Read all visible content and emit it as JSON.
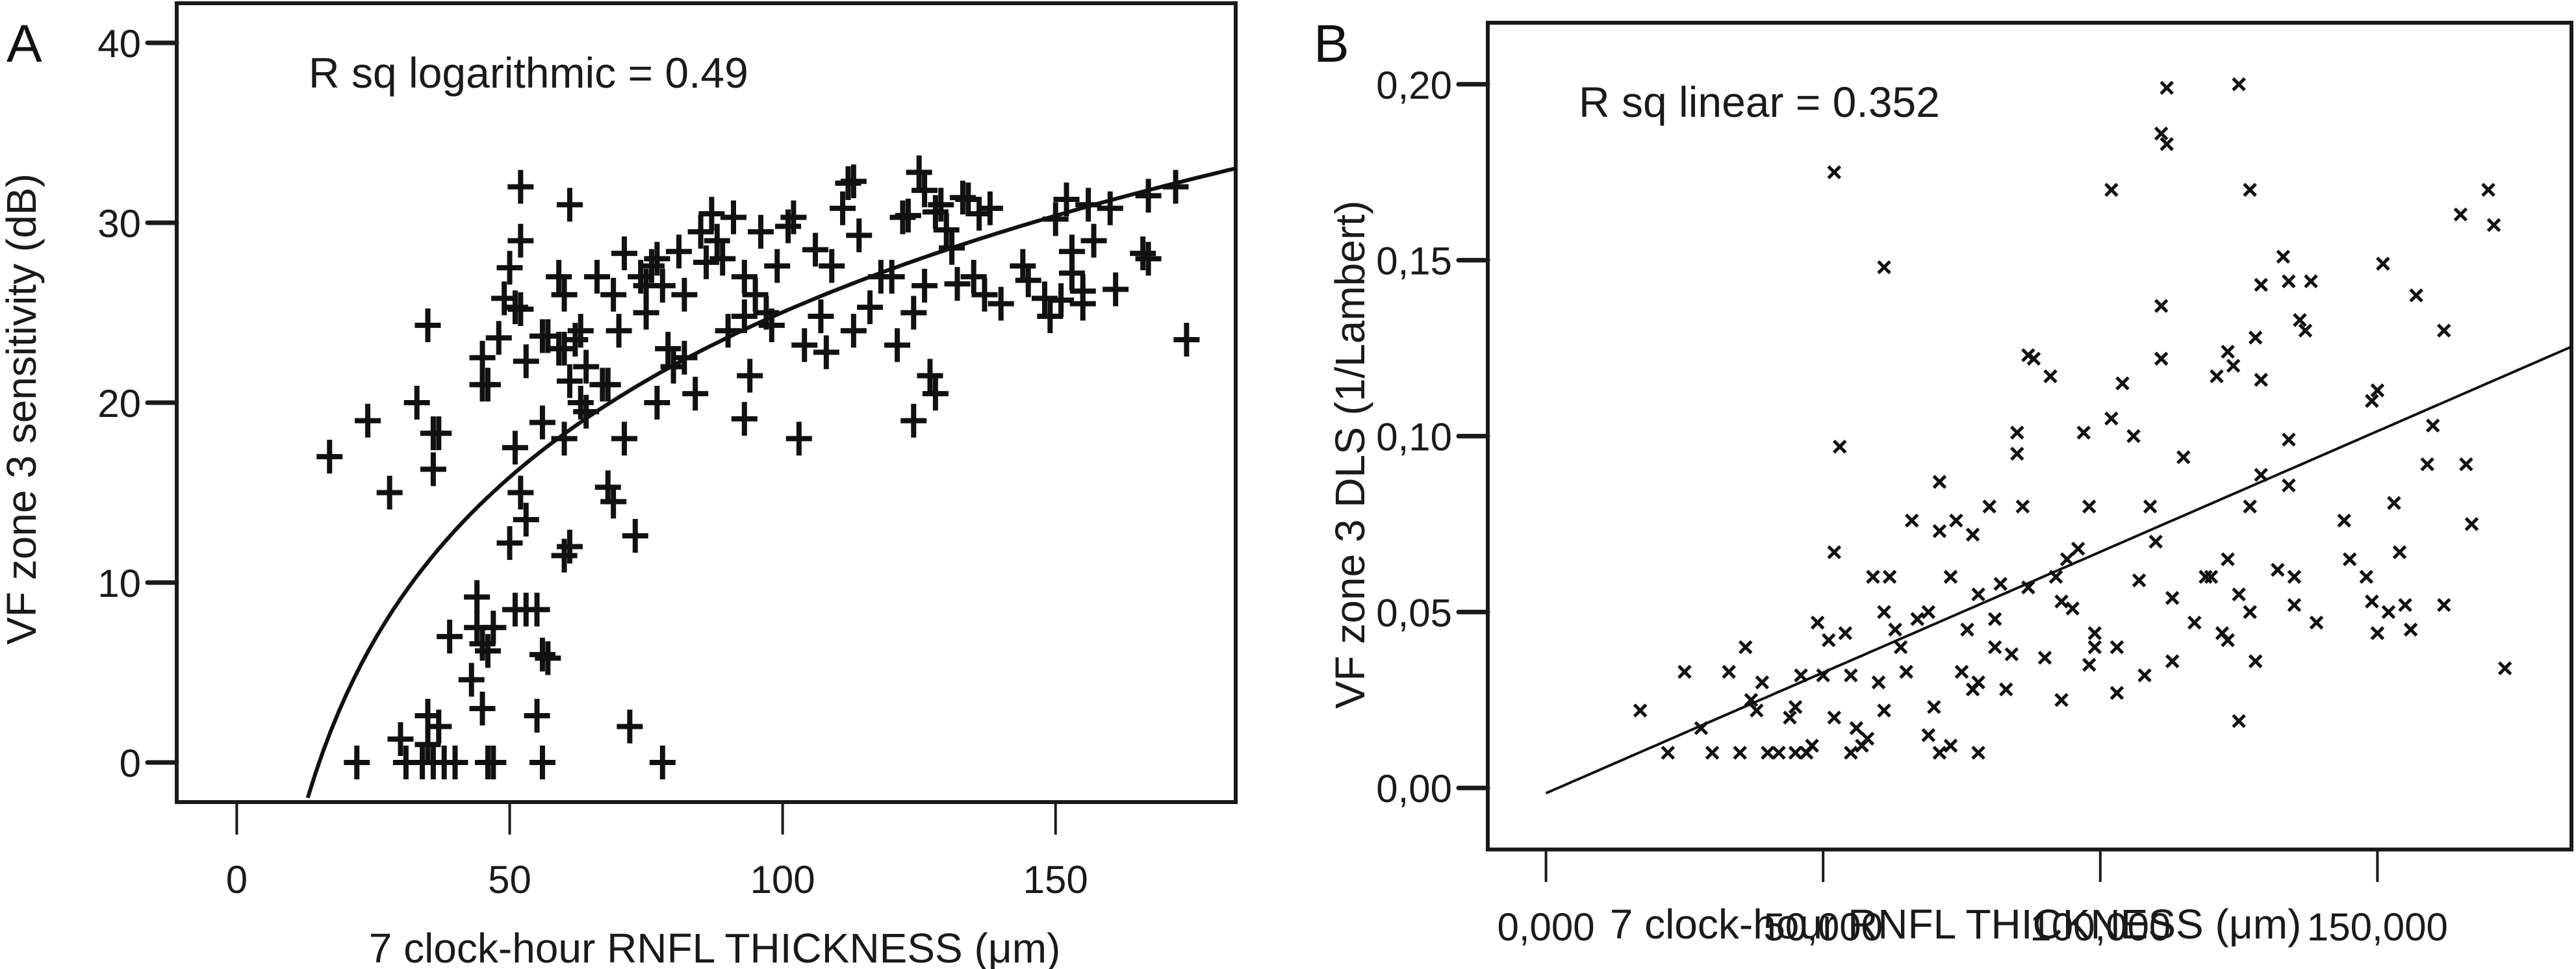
{
  "chart_data": [
    {
      "panel": "A",
      "type": "scatter",
      "title": "",
      "annotation": "R sq logarithmic = 0.49",
      "xlabel": "7 clock-hour RNFL THICKNESS (μm)",
      "ylabel": "VF zone 3 sensitivity (dB)",
      "xlim": [
        -11,
        183
      ],
      "ylim": [
        -2.2,
        42.2
      ],
      "xticks": [
        0,
        50,
        100,
        150
      ],
      "xtick_labels": [
        "0",
        "50",
        "100",
        "150"
      ],
      "yticks": [
        0,
        10,
        20,
        30,
        40
      ],
      "ytick_labels": [
        "0",
        "10",
        "20",
        "30",
        "40"
      ],
      "marker": "plus",
      "grid": false,
      "fit": {
        "type": "logarithmic",
        "a": -35.9,
        "b": 13.23,
        "x_range": [
          13,
          183
        ]
      },
      "points": [
        [
          17,
          17
        ],
        [
          24,
          19
        ],
        [
          28,
          15
        ],
        [
          33,
          20
        ],
        [
          35,
          24.3
        ],
        [
          36,
          18.3
        ],
        [
          37,
          18.3
        ],
        [
          36,
          16.3
        ],
        [
          35,
          2.6
        ],
        [
          30,
          1.3
        ],
        [
          35,
          1
        ],
        [
          37,
          2
        ],
        [
          22,
          0
        ],
        [
          31,
          0
        ],
        [
          34,
          0
        ],
        [
          36,
          0
        ],
        [
          38,
          0
        ],
        [
          40,
          0
        ],
        [
          39,
          7
        ],
        [
          43,
          4.6
        ],
        [
          44,
          9.2
        ],
        [
          44,
          7.5
        ],
        [
          45,
          6.6
        ],
        [
          46,
          6.2
        ],
        [
          47,
          7.5
        ],
        [
          45,
          3
        ],
        [
          46,
          0
        ],
        [
          47,
          0
        ],
        [
          45,
          21
        ],
        [
          46,
          21
        ],
        [
          45,
          22.5
        ],
        [
          48,
          23.6
        ],
        [
          49,
          25.8
        ],
        [
          50,
          27.5
        ],
        [
          51,
          25.3
        ],
        [
          52,
          32
        ],
        [
          52,
          29
        ],
        [
          52,
          25.2
        ],
        [
          53,
          22.3
        ],
        [
          51,
          17.5
        ],
        [
          50,
          12.2
        ],
        [
          52,
          15
        ],
        [
          53,
          13.5
        ],
        [
          51,
          8.5
        ],
        [
          53,
          8.5
        ],
        [
          55,
          8.5
        ],
        [
          57,
          5.8
        ],
        [
          56,
          6
        ],
        [
          55,
          2.6
        ],
        [
          56,
          0
        ],
        [
          56,
          18.9
        ],
        [
          56,
          23.7
        ],
        [
          57,
          23.7
        ],
        [
          59,
          27
        ],
        [
          59,
          23
        ],
        [
          60,
          26
        ],
        [
          60,
          23
        ],
        [
          61,
          31
        ],
        [
          61,
          21.2
        ],
        [
          62,
          23.5
        ],
        [
          63,
          24
        ],
        [
          63,
          20
        ],
        [
          64,
          22
        ],
        [
          64,
          19.5
        ],
        [
          60,
          18
        ],
        [
          60,
          11.5
        ],
        [
          61,
          12
        ],
        [
          66,
          27
        ],
        [
          67,
          21
        ],
        [
          68,
          21
        ],
        [
          68,
          15.3
        ],
        [
          69,
          14.5
        ],
        [
          69,
          26
        ],
        [
          70,
          24
        ],
        [
          71,
          28.3
        ],
        [
          71,
          18
        ],
        [
          72,
          2
        ],
        [
          73,
          12.6
        ],
        [
          74,
          27
        ],
        [
          75,
          26.5
        ],
        [
          75,
          25
        ],
        [
          76,
          27.6
        ],
        [
          77,
          20
        ],
        [
          77,
          28
        ],
        [
          78,
          26.5
        ],
        [
          78,
          0
        ],
        [
          79,
          23
        ],
        [
          80,
          22
        ],
        [
          81,
          28.4
        ],
        [
          82,
          26
        ],
        [
          82,
          22.5
        ],
        [
          84,
          20.5
        ],
        [
          85,
          29.5
        ],
        [
          86,
          27.8
        ],
        [
          87,
          30.5
        ],
        [
          88,
          29
        ],
        [
          89,
          28
        ],
        [
          90,
          24
        ],
        [
          91,
          30.3
        ],
        [
          93,
          27
        ],
        [
          93,
          24.8
        ],
        [
          93,
          19.1
        ],
        [
          94,
          21.5
        ],
        [
          95,
          26
        ],
        [
          96,
          29.5
        ],
        [
          97,
          25
        ],
        [
          98,
          24.3
        ],
        [
          99,
          27.6
        ],
        [
          101,
          29.8
        ],
        [
          102,
          30.3
        ],
        [
          103,
          18
        ],
        [
          104,
          23.2
        ],
        [
          106,
          28.5
        ],
        [
          107,
          24.8
        ],
        [
          108,
          22.8
        ],
        [
          109,
          27.6
        ],
        [
          111,
          30.8
        ],
        [
          112,
          32.2
        ],
        [
          113,
          32.3
        ],
        [
          113,
          24
        ],
        [
          114,
          29.3
        ],
        [
          116,
          25.3
        ],
        [
          118,
          27
        ],
        [
          120,
          27
        ],
        [
          121,
          23.2
        ],
        [
          122,
          30.3
        ],
        [
          123,
          30.4
        ],
        [
          124,
          25
        ],
        [
          124,
          19
        ],
        [
          125,
          32.8
        ],
        [
          126,
          31.8
        ],
        [
          126,
          26.5
        ],
        [
          127,
          21.5
        ],
        [
          128,
          20.5
        ],
        [
          128,
          30.6
        ],
        [
          129,
          31
        ],
        [
          130,
          29.6
        ],
        [
          131,
          28.6
        ],
        [
          132,
          26.6
        ],
        [
          133,
          31.4
        ],
        [
          134,
          31.3
        ],
        [
          135,
          27
        ],
        [
          136,
          30.5
        ],
        [
          137,
          26
        ],
        [
          138,
          30.8
        ],
        [
          140,
          25.5
        ],
        [
          144,
          27.6
        ],
        [
          145,
          26.8
        ],
        [
          148,
          25.8
        ],
        [
          149,
          24.8
        ],
        [
          150,
          30.2
        ],
        [
          151,
          25.7
        ],
        [
          152,
          31.3
        ],
        [
          153,
          28.4
        ],
        [
          153,
          27.2
        ],
        [
          155,
          25.5
        ],
        [
          155,
          26.2
        ],
        [
          156,
          31
        ],
        [
          157,
          29
        ],
        [
          160,
          30.8
        ],
        [
          161,
          26.3
        ],
        [
          166,
          28.3
        ],
        [
          167,
          28
        ],
        [
          167,
          31.5
        ],
        [
          172,
          32
        ],
        [
          174,
          23.5
        ]
      ]
    },
    {
      "panel": "B",
      "type": "scatter",
      "title": "",
      "annotation": "R sq linear = 0.352",
      "xlabel": "7 clock-hour RNFL THICKNESS (μm)",
      "ylabel": "VF zone 3 DLS (1/Lambert)",
      "xlim": [
        -10500,
        185000
      ],
      "ylim": [
        -0.0175,
        0.2175
      ],
      "xticks": [
        0,
        50000,
        100000,
        150000
      ],
      "xtick_labels": [
        "0,000",
        "50,000",
        "100,000",
        "150,000"
      ],
      "yticks": [
        0,
        0.05,
        0.1,
        0.15,
        0.2
      ],
      "ytick_labels": [
        "0,00",
        "0,05",
        "0,10",
        "0,15",
        "0,20"
      ],
      "marker": "x",
      "grid": false,
      "fit": {
        "type": "linear",
        "intercept": -0.0015,
        "slope": 6.86e-07,
        "x_range": [
          0,
          185000
        ]
      },
      "points": [
        [
          17000,
          0.022
        ],
        [
          22000,
          0.01
        ],
        [
          25000,
          0.033
        ],
        [
          28000,
          0.017
        ],
        [
          30000,
          0.01
        ],
        [
          33000,
          0.033
        ],
        [
          35000,
          0.01
        ],
        [
          36000,
          0.04
        ],
        [
          37000,
          0.025
        ],
        [
          38000,
          0.022
        ],
        [
          39000,
          0.03
        ],
        [
          40000,
          0.01
        ],
        [
          42000,
          0.01
        ],
        [
          44000,
          0.02
        ],
        [
          45000,
          0.023
        ],
        [
          45000,
          0.01
        ],
        [
          46000,
          0.032
        ],
        [
          47000,
          0.01
        ],
        [
          48000,
          0.012
        ],
        [
          49000,
          0.047
        ],
        [
          50000,
          0.032
        ],
        [
          51000,
          0.042
        ],
        [
          52000,
          0.02
        ],
        [
          52000,
          0.067
        ],
        [
          52000,
          0.175
        ],
        [
          53000,
          0.097
        ],
        [
          54000,
          0.044
        ],
        [
          55000,
          0.032
        ],
        [
          55000,
          0.01
        ],
        [
          56000,
          0.017
        ],
        [
          57000,
          0.012
        ],
        [
          58000,
          0.014
        ],
        [
          59000,
          0.06
        ],
        [
          60000,
          0.03
        ],
        [
          61000,
          0.05
        ],
        [
          61000,
          0.022
        ],
        [
          61000,
          0.148
        ],
        [
          62000,
          0.06
        ],
        [
          63000,
          0.045
        ],
        [
          64000,
          0.04
        ],
        [
          65000,
          0.033
        ],
        [
          66000,
          0.076
        ],
        [
          67000,
          0.048
        ],
        [
          69000,
          0.015
        ],
        [
          69000,
          0.05
        ],
        [
          70000,
          0.023
        ],
        [
          71000,
          0.073
        ],
        [
          71000,
          0.01
        ],
        [
          71000,
          0.087
        ],
        [
          73000,
          0.012
        ],
        [
          73000,
          0.06
        ],
        [
          74000,
          0.076
        ],
        [
          75000,
          0.033
        ],
        [
          76000,
          0.045
        ],
        [
          77000,
          0.072
        ],
        [
          77000,
          0.028
        ],
        [
          78000,
          0.03
        ],
        [
          78000,
          0.055
        ],
        [
          78000,
          0.01
        ],
        [
          80000,
          0.08
        ],
        [
          81000,
          0.048
        ],
        [
          81000,
          0.04
        ],
        [
          82000,
          0.058
        ],
        [
          83000,
          0.028
        ],
        [
          84000,
          0.038
        ],
        [
          85000,
          0.101
        ],
        [
          85000,
          0.095
        ],
        [
          86000,
          0.08
        ],
        [
          87000,
          0.123
        ],
        [
          87000,
          0.057
        ],
        [
          88000,
          0.122
        ],
        [
          90000,
          0.037
        ],
        [
          91000,
          0.117
        ],
        [
          92000,
          0.06
        ],
        [
          93000,
          0.053
        ],
        [
          93000,
          0.025
        ],
        [
          94000,
          0.065
        ],
        [
          95000,
          0.051
        ],
        [
          96000,
          0.068
        ],
        [
          97000,
          0.101
        ],
        [
          98000,
          0.035
        ],
        [
          98000,
          0.08
        ],
        [
          99000,
          0.04
        ],
        [
          99000,
          0.044
        ],
        [
          102000,
          0.105
        ],
        [
          102000,
          0.17
        ],
        [
          103000,
          0.04
        ],
        [
          103000,
          0.027
        ],
        [
          104000,
          0.115
        ],
        [
          106000,
          0.1
        ],
        [
          107000,
          0.059
        ],
        [
          108000,
          0.032
        ],
        [
          109000,
          0.08
        ],
        [
          110000,
          0.07
        ],
        [
          111000,
          0.137
        ],
        [
          111000,
          0.122
        ],
        [
          111000,
          0.186
        ],
        [
          112000,
          0.183
        ],
        [
          112000,
          0.199
        ],
        [
          113000,
          0.054
        ],
        [
          113000,
          0.036
        ],
        [
          115000,
          0.094
        ],
        [
          117000,
          0.047
        ],
        [
          119000,
          0.06
        ],
        [
          120000,
          0.06
        ],
        [
          121000,
          0.117
        ],
        [
          122000,
          0.044
        ],
        [
          123000,
          0.065
        ],
        [
          123000,
          0.042
        ],
        [
          123000,
          0.124
        ],
        [
          124000,
          0.12
        ],
        [
          125000,
          0.2
        ],
        [
          125000,
          0.055
        ],
        [
          125000,
          0.019
        ],
        [
          127000,
          0.08
        ],
        [
          127000,
          0.05
        ],
        [
          127000,
          0.17
        ],
        [
          128000,
          0.128
        ],
        [
          128000,
          0.036
        ],
        [
          129000,
          0.143
        ],
        [
          129000,
          0.116
        ],
        [
          129000,
          0.089
        ],
        [
          132000,
          0.062
        ],
        [
          133000,
          0.151
        ],
        [
          134000,
          0.099
        ],
        [
          134000,
          0.086
        ],
        [
          134000,
          0.144
        ],
        [
          135000,
          0.06
        ],
        [
          135000,
          0.052
        ],
        [
          136000,
          0.133
        ],
        [
          137000,
          0.13
        ],
        [
          138000,
          0.144
        ],
        [
          139000,
          0.047
        ],
        [
          144000,
          0.076
        ],
        [
          145000,
          0.065
        ],
        [
          148000,
          0.06
        ],
        [
          149000,
          0.11
        ],
        [
          149000,
          0.053
        ],
        [
          150000,
          0.044
        ],
        [
          150000,
          0.113
        ],
        [
          151000,
          0.149
        ],
        [
          152000,
          0.05
        ],
        [
          153000,
          0.081
        ],
        [
          154000,
          0.067
        ],
        [
          155000,
          0.052
        ],
        [
          156000,
          0.045
        ],
        [
          157000,
          0.14
        ],
        [
          159000,
          0.092
        ],
        [
          160000,
          0.103
        ],
        [
          162000,
          0.13
        ],
        [
          162000,
          0.052
        ],
        [
          165000,
          0.163
        ],
        [
          166000,
          0.092
        ],
        [
          167000,
          0.075
        ],
        [
          170000,
          0.17
        ],
        [
          171000,
          0.16
        ],
        [
          173000,
          0.034
        ]
      ]
    }
  ],
  "panels": {
    "A": {
      "label": "A"
    },
    "B": {
      "label": "B"
    }
  }
}
